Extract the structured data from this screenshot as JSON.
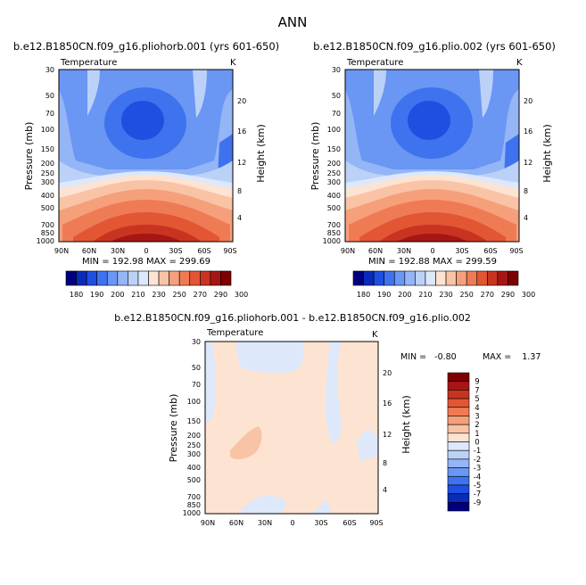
{
  "figure_title": "ANN",
  "chart_data": [
    {
      "type": "contour",
      "title": "b.e12.B1850CN.f09_g16.pliohorb.001 (yrs 601-650)",
      "variable": "Temperature",
      "units": "K",
      "ylabel": "Pressure (mb)",
      "ylabel_right": "Height (km)",
      "x_ticks": [
        "90N",
        "60N",
        "30N",
        "0",
        "30S",
        "60S",
        "90S"
      ],
      "y_ticks": [
        "30",
        "50",
        "70",
        "100",
        "150",
        "200",
        "250",
        "300",
        "400",
        "500",
        "700",
        "850",
        "1000"
      ],
      "height_ticks": [
        "20",
        "16",
        "12",
        "8",
        "4"
      ],
      "stats": "MIN = 192.98   MAX = 299.69",
      "min": 192.98,
      "max": 299.69
    },
    {
      "type": "contour",
      "title": "b.e12.B1850CN.f09_g16.plio.002 (yrs 601-650)",
      "variable": "Temperature",
      "units": "K",
      "ylabel": "Pressure (mb)",
      "ylabel_right": "Height (km)",
      "x_ticks": [
        "90N",
        "60N",
        "30N",
        "0",
        "30S",
        "60S",
        "90S"
      ],
      "y_ticks": [
        "30",
        "50",
        "70",
        "100",
        "150",
        "200",
        "250",
        "300",
        "400",
        "500",
        "700",
        "850",
        "1000"
      ],
      "height_ticks": [
        "20",
        "16",
        "12",
        "8",
        "4"
      ],
      "stats": "MIN = 192.88   MAX = 299.59",
      "min": 192.88,
      "max": 299.59
    },
    {
      "type": "contour",
      "title": "b.e12.B1850CN.f09_g16.pliohorb.001 - b.e12.B1850CN.f09_g16.plio.002",
      "variable": "Temperature",
      "units": "K",
      "ylabel": "Pressure (mb)",
      "ylabel_right": "Height (km)",
      "x_ticks": [
        "90N",
        "60N",
        "30N",
        "0",
        "30S",
        "60S",
        "90S"
      ],
      "y_ticks": [
        "30",
        "50",
        "70",
        "100",
        "150",
        "200",
        "250",
        "300",
        "400",
        "500",
        "700",
        "850",
        "1000"
      ],
      "height_ticks": [
        "20",
        "16",
        "12",
        "8",
        "4"
      ],
      "stats_min": "MIN =   -0.80",
      "stats_max": "MAX =    1.37",
      "min": -0.8,
      "max": 1.37
    }
  ],
  "colorbar_top": {
    "labels": [
      "180",
      "190",
      "200",
      "210",
      "230",
      "250",
      "270",
      "290",
      "300"
    ],
    "colors": [
      "#00007f",
      "#0a2ab8",
      "#1e4fe0",
      "#3f72ee",
      "#6a96f4",
      "#94b5f6",
      "#bcd1f8",
      "#dde8fb",
      "#fde3d2",
      "#f9c3a6",
      "#f5a07b",
      "#ef7b55",
      "#e25634",
      "#c93420",
      "#a71614",
      "#7f0000"
    ]
  },
  "colorbar_diff": {
    "labels": [
      "9",
      "7",
      "5",
      "4",
      "3",
      "2",
      "1",
      "0",
      "-1",
      "-2",
      "-3",
      "-4",
      "-5",
      "-7",
      "-9"
    ],
    "colors": [
      "#7f0000",
      "#a71614",
      "#c93420",
      "#e25634",
      "#ef7b55",
      "#f5a07b",
      "#f9c3a6",
      "#fde3d2",
      "#dde8fb",
      "#bcd1f8",
      "#94b5f6",
      "#6a96f4",
      "#3f72ee",
      "#1e4fe0",
      "#0a2ab8",
      "#00007f"
    ]
  }
}
